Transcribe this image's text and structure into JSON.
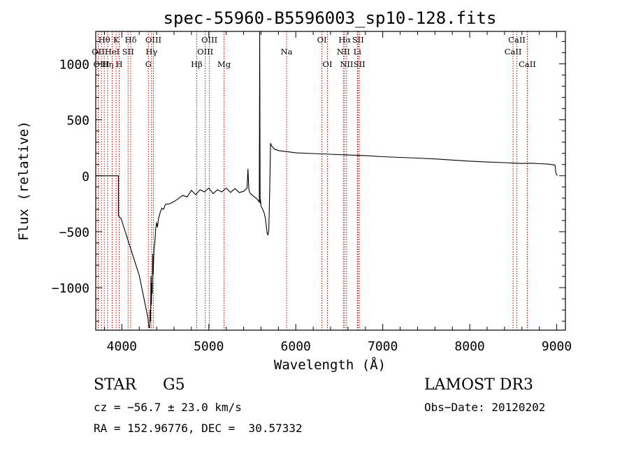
{
  "chart_data": {
    "type": "line",
    "title": "spec-55960-B5596003_sp10-128.fits",
    "xlabel": "Wavelength (Å)",
    "ylabel": "Flux (relative)",
    "xlim": [
      3700,
      9100
    ],
    "ylim": [
      -1380,
      1290
    ],
    "x_ticks": [
      4000,
      5000,
      6000,
      7000,
      8000,
      9000
    ],
    "y_ticks": [
      -1000,
      -500,
      0,
      500,
      1000
    ],
    "y_tick_labels": [
      "−1000",
      "−500",
      "0",
      "500",
      "1000"
    ],
    "grid": false,
    "series": [
      {
        "name": "flux",
        "x": [
          3700,
          3960,
          3960,
          3990,
          4200,
          4300,
          4310,
          4320,
          4325,
          4330,
          4335,
          4340,
          4345,
          4350,
          4355,
          4360,
          4370,
          4380,
          4390,
          4400,
          4410,
          4420,
          4440,
          4460,
          4480,
          4500,
          4550,
          4600,
          4650,
          4700,
          4750,
          4800,
          4850,
          4900,
          4950,
          5000,
          5050,
          5100,
          5150,
          5200,
          5250,
          5300,
          5350,
          5400,
          5440,
          5450,
          5460,
          5470,
          5480,
          5500,
          5550,
          5580,
          5585,
          5590,
          5595,
          5600,
          5620,
          5640,
          5650,
          5660,
          5670,
          5680,
          5690,
          5700,
          5710,
          5720,
          5750,
          5800,
          5900,
          6000,
          6200,
          6400,
          6600,
          6800,
          7000,
          7200,
          7400,
          7600,
          7800,
          8000,
          8200,
          8400,
          8500,
          8600,
          8700,
          8800,
          8900,
          8980,
          8990,
          9000,
          9010
        ],
        "y": [
          0,
          0,
          -360,
          -380,
          -890,
          -1270,
          -1350,
          -1360,
          -1200,
          -1300,
          -900,
          -1150,
          -960,
          -1050,
          -700,
          -880,
          -650,
          -590,
          -470,
          -420,
          -460,
          -390,
          -330,
          -290,
          -300,
          -255,
          -250,
          -230,
          -205,
          -175,
          -190,
          -130,
          -170,
          -125,
          -145,
          -110,
          -160,
          -125,
          -145,
          -110,
          -150,
          -115,
          -150,
          -140,
          -110,
          60,
          -120,
          -150,
          -160,
          -175,
          -205,
          -235,
          1290,
          -245,
          -215,
          -270,
          -300,
          -340,
          -380,
          -445,
          -510,
          -530,
          -490,
          -130,
          290,
          270,
          240,
          225,
          215,
          205,
          198,
          192,
          185,
          180,
          170,
          164,
          158,
          150,
          140,
          130,
          123,
          117,
          113,
          110,
          112,
          108,
          104,
          96,
          30,
          5,
          5
        ]
      }
    ],
    "lines": [
      {
        "name": "Hθ",
        "wave": 3798,
        "row": 0
      },
      {
        "name": "OII",
        "wave": 3728,
        "row": 1
      },
      {
        "name": "OIII",
        "wave": 3765,
        "row": 2
      },
      {
        "name": "Hη",
        "wave": 3836,
        "row": 2
      },
      {
        "name": "K",
        "wave": 3934,
        "row": 0
      },
      {
        "name": "HeI",
        "wave": 3889,
        "row": 1
      },
      {
        "name": "H",
        "wave": 3969,
        "row": 2
      },
      {
        "name": "SII",
        "wave": 4072,
        "row": 1
      },
      {
        "name": "Hδ",
        "wave": 4102,
        "row": 0
      },
      {
        "name": "OIII",
        "wave": 4363,
        "row": 0
      },
      {
        "name": "Hγ",
        "wave": 4341,
        "row": 1
      },
      {
        "name": "G",
        "wave": 4305,
        "row": 2
      },
      {
        "name": "Hβ",
        "wave": 4861,
        "row": 2
      },
      {
        "name": "OIII",
        "wave": 5007,
        "row": 0
      },
      {
        "name": "OIII",
        "wave": 4959,
        "row": 1
      },
      {
        "name": "Mg",
        "wave": 5175,
        "row": 2
      },
      {
        "name": "Na",
        "wave": 5894,
        "row": 1
      },
      {
        "name": "OI",
        "wave": 6300,
        "row": 0
      },
      {
        "name": "OI",
        "wave": 6364,
        "row": 2
      },
      {
        "name": "Hα",
        "wave": 6563,
        "row": 0
      },
      {
        "name": "NII",
        "wave": 6548,
        "row": 1
      },
      {
        "name": "NII",
        "wave": 6584,
        "row": 2
      },
      {
        "name": "SII",
        "wave": 6716,
        "row": 0
      },
      {
        "name": "Li",
        "wave": 6708,
        "row": 1
      },
      {
        "name": "SII",
        "wave": 6731,
        "row": 2
      },
      {
        "name": "CaII",
        "wave": 8542,
        "row": 0
      },
      {
        "name": "CaII",
        "wave": 8498,
        "row": 1
      },
      {
        "name": "CaII",
        "wave": 8662,
        "row": 2
      }
    ]
  },
  "info": {
    "class": "STAR",
    "subclass": "G5",
    "survey": "LAMOST DR3",
    "cz": "cz = −56.7 ± 23.0 km/s",
    "obs_date": "Obs−Date: 20120202",
    "coords": "RA = 152.96776, DEC =  30.57332"
  }
}
